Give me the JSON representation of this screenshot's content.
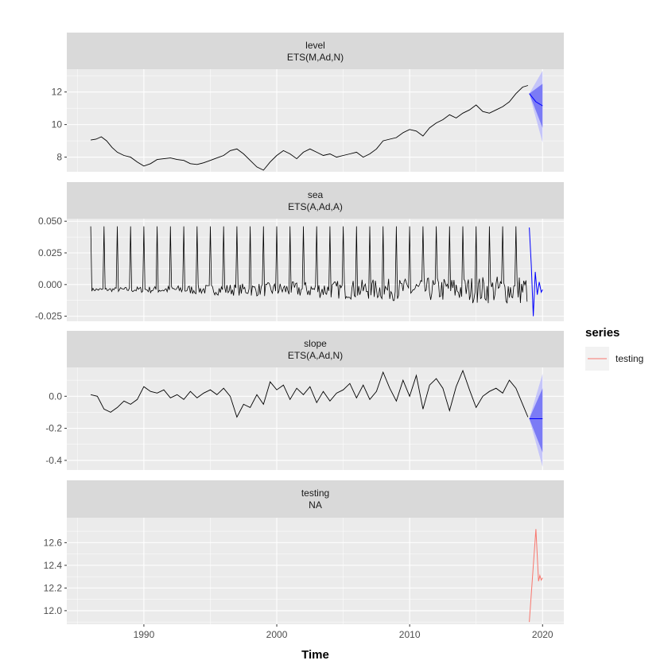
{
  "chart_data": {
    "type": "line",
    "xlabel": "Time",
    "x_ticks": [
      1990,
      2000,
      2010,
      2020
    ],
    "x_range": [
      1984.2,
      2021.6
    ],
    "legend": {
      "title": "series",
      "entries": [
        {
          "label": "testing",
          "color": "#F8766D"
        }
      ],
      "placement": "right"
    },
    "colors": {
      "observed": "#000000",
      "forecast": "#0000FF",
      "pi80": "#7B7BF5",
      "pi95": "#C5C5F9",
      "testing": "#F8766D",
      "strip": "#D9D9D9",
      "panel": "#EBEBEB"
    },
    "panels": [
      {
        "id": "level",
        "strip": [
          "level",
          "ETS(M,Ad,N)"
        ],
        "ylim": [
          7.1,
          13.4
        ],
        "y_ticks": [
          8,
          10,
          12
        ],
        "y_tick_labels": [
          "8",
          "10",
          "12"
        ],
        "observed": [
          [
            1986.0,
            9.05
          ],
          [
            1986.4,
            9.1
          ],
          [
            1986.8,
            9.25
          ],
          [
            1987.2,
            9.0
          ],
          [
            1987.6,
            8.6
          ],
          [
            1988.0,
            8.3
          ],
          [
            1988.5,
            8.1
          ],
          [
            1989.0,
            8.0
          ],
          [
            1989.5,
            7.7
          ],
          [
            1990.0,
            7.45
          ],
          [
            1990.5,
            7.6
          ],
          [
            1991.0,
            7.85
          ],
          [
            1991.5,
            7.9
          ],
          [
            1992.0,
            7.95
          ],
          [
            1992.5,
            7.85
          ],
          [
            1993.0,
            7.8
          ],
          [
            1993.5,
            7.6
          ],
          [
            1994.0,
            7.55
          ],
          [
            1994.5,
            7.65
          ],
          [
            1995.0,
            7.8
          ],
          [
            1995.5,
            7.95
          ],
          [
            1996.0,
            8.1
          ],
          [
            1996.5,
            8.4
          ],
          [
            1997.0,
            8.5
          ],
          [
            1997.5,
            8.2
          ],
          [
            1998.0,
            7.8
          ],
          [
            1998.5,
            7.4
          ],
          [
            1999.0,
            7.2
          ],
          [
            1999.5,
            7.7
          ],
          [
            2000.0,
            8.1
          ],
          [
            2000.5,
            8.4
          ],
          [
            2001.0,
            8.2
          ],
          [
            2001.5,
            7.9
          ],
          [
            2002.0,
            8.3
          ],
          [
            2002.5,
            8.5
          ],
          [
            2003.0,
            8.3
          ],
          [
            2003.5,
            8.1
          ],
          [
            2004.0,
            8.2
          ],
          [
            2004.5,
            8.0
          ],
          [
            2005.0,
            8.1
          ],
          [
            2005.5,
            8.2
          ],
          [
            2006.0,
            8.3
          ],
          [
            2006.5,
            8.0
          ],
          [
            2007.0,
            8.2
          ],
          [
            2007.5,
            8.5
          ],
          [
            2008.0,
            9.0
          ],
          [
            2008.5,
            9.1
          ],
          [
            2009.0,
            9.2
          ],
          [
            2009.5,
            9.5
          ],
          [
            2010.0,
            9.7
          ],
          [
            2010.5,
            9.6
          ],
          [
            2011.0,
            9.3
          ],
          [
            2011.5,
            9.8
          ],
          [
            2012.0,
            10.1
          ],
          [
            2012.5,
            10.3
          ],
          [
            2013.0,
            10.6
          ],
          [
            2013.5,
            10.4
          ],
          [
            2014.0,
            10.7
          ],
          [
            2014.5,
            10.9
          ],
          [
            2015.0,
            11.2
          ],
          [
            2015.5,
            10.8
          ],
          [
            2016.0,
            10.7
          ],
          [
            2016.5,
            10.9
          ],
          [
            2017.0,
            11.1
          ],
          [
            2017.5,
            11.4
          ],
          [
            2018.0,
            11.9
          ],
          [
            2018.5,
            12.3
          ],
          [
            2018.9,
            12.4
          ]
        ],
        "forecast": [
          [
            2019.0,
            11.9
          ],
          [
            2019.5,
            11.4
          ],
          [
            2020.0,
            11.15
          ]
        ],
        "pi80": {
          "x": [
            2019.0,
            2020.0
          ],
          "upper": [
            11.9,
            12.5
          ],
          "lower": [
            11.9,
            9.8
          ]
        },
        "pi95": {
          "x": [
            2019.0,
            2020.0
          ],
          "upper": [
            11.9,
            13.3
          ],
          "lower": [
            11.9,
            8.9
          ]
        }
      },
      {
        "id": "sea",
        "strip": [
          "sea",
          "ETS(A,Ad,A)"
        ],
        "ylim": [
          -0.029,
          0.052
        ],
        "y_ticks": [
          -0.025,
          0.0,
          0.025,
          0.05
        ],
        "y_tick_labels": [
          "-0.025",
          "0.000",
          "0.025",
          "0.050"
        ],
        "seasonal": {
          "start": 1986.0,
          "end": 2018.9,
          "period": 1.0,
          "spike": 0.046,
          "base": -0.004,
          "noise_start": 0.002,
          "noise_end": 0.02
        },
        "forecast": [
          [
            2019.0,
            0.045
          ],
          [
            2019.15,
            0.015
          ],
          [
            2019.3,
            -0.025
          ],
          [
            2019.45,
            0.01
          ],
          [
            2019.6,
            -0.008
          ],
          [
            2019.75,
            0.002
          ],
          [
            2019.9,
            -0.006
          ],
          [
            2020.0,
            -0.004
          ]
        ]
      },
      {
        "id": "slope",
        "strip": [
          "slope",
          "ETS(A,Ad,N)"
        ],
        "ylim": [
          -0.46,
          0.18
        ],
        "y_ticks": [
          -0.4,
          -0.2,
          0.0
        ],
        "y_tick_labels": [
          "-0.4",
          "-0.2",
          "0.0"
        ],
        "observed": [
          [
            1986.0,
            0.01
          ],
          [
            1986.5,
            0.0
          ],
          [
            1987.0,
            -0.08
          ],
          [
            1987.5,
            -0.1
          ],
          [
            1988.0,
            -0.07
          ],
          [
            1988.5,
            -0.03
          ],
          [
            1989.0,
            -0.05
          ],
          [
            1989.5,
            -0.02
          ],
          [
            1990.0,
            0.06
          ],
          [
            1990.5,
            0.03
          ],
          [
            1991.0,
            0.02
          ],
          [
            1991.5,
            0.04
          ],
          [
            1992.0,
            -0.01
          ],
          [
            1992.5,
            0.01
          ],
          [
            1993.0,
            -0.02
          ],
          [
            1993.5,
            0.03
          ],
          [
            1994.0,
            -0.01
          ],
          [
            1994.5,
            0.02
          ],
          [
            1995.0,
            0.04
          ],
          [
            1995.5,
            0.01
          ],
          [
            1996.0,
            0.05
          ],
          [
            1996.5,
            0.0
          ],
          [
            1997.0,
            -0.13
          ],
          [
            1997.5,
            -0.05
          ],
          [
            1998.0,
            -0.07
          ],
          [
            1998.5,
            0.01
          ],
          [
            1999.0,
            -0.05
          ],
          [
            1999.5,
            0.09
          ],
          [
            2000.0,
            0.04
          ],
          [
            2000.5,
            0.07
          ],
          [
            2001.0,
            -0.02
          ],
          [
            2001.5,
            0.05
          ],
          [
            2002.0,
            0.01
          ],
          [
            2002.5,
            0.06
          ],
          [
            2003.0,
            -0.04
          ],
          [
            2003.5,
            0.03
          ],
          [
            2004.0,
            -0.03
          ],
          [
            2004.5,
            0.02
          ],
          [
            2005.0,
            0.04
          ],
          [
            2005.5,
            0.08
          ],
          [
            2006.0,
            -0.01
          ],
          [
            2006.5,
            0.07
          ],
          [
            2007.0,
            -0.02
          ],
          [
            2007.5,
            0.03
          ],
          [
            2008.0,
            0.15
          ],
          [
            2008.5,
            0.05
          ],
          [
            2009.0,
            -0.03
          ],
          [
            2009.5,
            0.1
          ],
          [
            2010.0,
            0.0
          ],
          [
            2010.5,
            0.13
          ],
          [
            2011.0,
            -0.08
          ],
          [
            2011.5,
            0.07
          ],
          [
            2012.0,
            0.11
          ],
          [
            2012.5,
            0.05
          ],
          [
            2013.0,
            -0.09
          ],
          [
            2013.5,
            0.06
          ],
          [
            2014.0,
            0.16
          ],
          [
            2014.5,
            0.04
          ],
          [
            2015.0,
            -0.07
          ],
          [
            2015.5,
            0.0
          ],
          [
            2016.0,
            0.03
          ],
          [
            2016.5,
            0.05
          ],
          [
            2017.0,
            0.02
          ],
          [
            2017.5,
            0.1
          ],
          [
            2018.0,
            0.05
          ],
          [
            2018.5,
            -0.05
          ],
          [
            2018.9,
            -0.13
          ]
        ],
        "forecast": [
          [
            2019.0,
            -0.14
          ],
          [
            2020.0,
            -0.14
          ]
        ],
        "pi80": {
          "x": [
            2019.0,
            2020.0
          ],
          "upper": [
            -0.14,
            0.05
          ],
          "lower": [
            -0.14,
            -0.35
          ]
        },
        "pi95": {
          "x": [
            2019.0,
            2020.0
          ],
          "upper": [
            -0.14,
            0.14
          ],
          "lower": [
            -0.14,
            -0.44
          ]
        }
      },
      {
        "id": "testing",
        "strip": [
          "testing",
          "NA"
        ],
        "ylim": [
          11.88,
          12.82
        ],
        "y_ticks": [
          12.0,
          12.2,
          12.4,
          12.6
        ],
        "y_tick_labels": [
          "12.0",
          "12.2",
          "12.4",
          "12.6"
        ],
        "testing": [
          [
            2019.0,
            11.9
          ],
          [
            2019.5,
            12.72
          ],
          [
            2019.7,
            12.26
          ],
          [
            2019.8,
            12.31
          ],
          [
            2019.9,
            12.27
          ],
          [
            2020.0,
            12.29
          ]
        ]
      }
    ]
  }
}
